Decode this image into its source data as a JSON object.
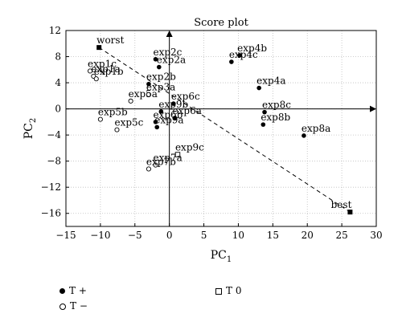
{
  "chart_data": {
    "type": "scatter",
    "title": "Score plot",
    "xlabel": {
      "main": "PC",
      "sub": "1"
    },
    "ylabel": {
      "main": "PC",
      "sub": "2"
    },
    "xlim": [
      -15,
      30
    ],
    "ylim": [
      -18,
      12
    ],
    "xticks": [
      -15,
      -10,
      -5,
      0,
      5,
      10,
      15,
      20,
      25,
      30
    ],
    "yticks": [
      -16,
      -12,
      -8,
      -4,
      0,
      4,
      8,
      12
    ],
    "grid": true,
    "legend": [
      {
        "key": "tplus",
        "label": "T +"
      },
      {
        "key": "tminus",
        "label": "T −"
      },
      {
        "key": "t0",
        "label": "T 0"
      }
    ],
    "reference_line": {
      "from": [
        -10.2,
        9.4
      ],
      "to": [
        26.2,
        -15.8
      ]
    },
    "points": [
      {
        "label": "worst",
        "x": -10.2,
        "y": 9.4,
        "group": "ref"
      },
      {
        "label": "best",
        "x": 26.2,
        "y": -15.8,
        "group": "ref"
      },
      {
        "label": "exp4b",
        "x": 10.2,
        "y": 8.2,
        "group": "tplus"
      },
      {
        "label": "exp4c",
        "x": 9.0,
        "y": 7.2,
        "group": "tplus"
      },
      {
        "label": "exp4a",
        "x": 13.0,
        "y": 3.2,
        "group": "tplus"
      },
      {
        "label": "exp8c",
        "x": 13.8,
        "y": -0.5,
        "group": "tplus"
      },
      {
        "label": "exp8b",
        "x": 13.6,
        "y": -2.4,
        "group": "tplus"
      },
      {
        "label": "exp8a",
        "x": 19.5,
        "y": -4.1,
        "group": "tplus"
      },
      {
        "label": "exp2c",
        "x": -2.0,
        "y": 7.6,
        "group": "tplus"
      },
      {
        "label": "exp2a",
        "x": -1.5,
        "y": 6.4,
        "group": "tplus"
      },
      {
        "label": "exp2b",
        "x": -3.0,
        "y": 3.8,
        "group": "tplus"
      },
      {
        "label": "exp1c",
        "x": -11.5,
        "y": 5.8,
        "group": "tminus"
      },
      {
        "label": "exp1a",
        "x": -11.0,
        "y": 5.0,
        "group": "tminus"
      },
      {
        "label": "exp1b",
        "x": -10.6,
        "y": 4.6,
        "group": "tminus"
      },
      {
        "label": "exp3a",
        "x": -3.0,
        "y": 2.2,
        "group": "tminus"
      },
      {
        "label": "exp5a",
        "x": -5.6,
        "y": 1.2,
        "group": "tminus"
      },
      {
        "label": "exp6c",
        "x": 0.6,
        "y": 0.8,
        "group": "tplus"
      },
      {
        "label": "exp9b",
        "x": -1.2,
        "y": -0.4,
        "group": "tplus"
      },
      {
        "label": "exp6a",
        "x": 0.8,
        "y": -1.4,
        "group": "tplus"
      },
      {
        "label": "exp6b",
        "x": -2.0,
        "y": -2.0,
        "group": "tplus"
      },
      {
        "label": "exp9a",
        "x": -1.8,
        "y": -2.8,
        "group": "tplus"
      },
      {
        "label": "exp5b",
        "x": -10.0,
        "y": -1.6,
        "group": "tminus"
      },
      {
        "label": "exp5c",
        "x": -7.6,
        "y": -3.2,
        "group": "tminus"
      },
      {
        "label": "exp9c",
        "x": 1.2,
        "y": -7.0,
        "group": "t0"
      },
      {
        "label": "exp7a",
        "x": -2.0,
        "y": -8.6,
        "group": "tminus"
      },
      {
        "label": "exp7b",
        "x": -3.0,
        "y": -9.2,
        "group": "tminus"
      }
    ]
  }
}
